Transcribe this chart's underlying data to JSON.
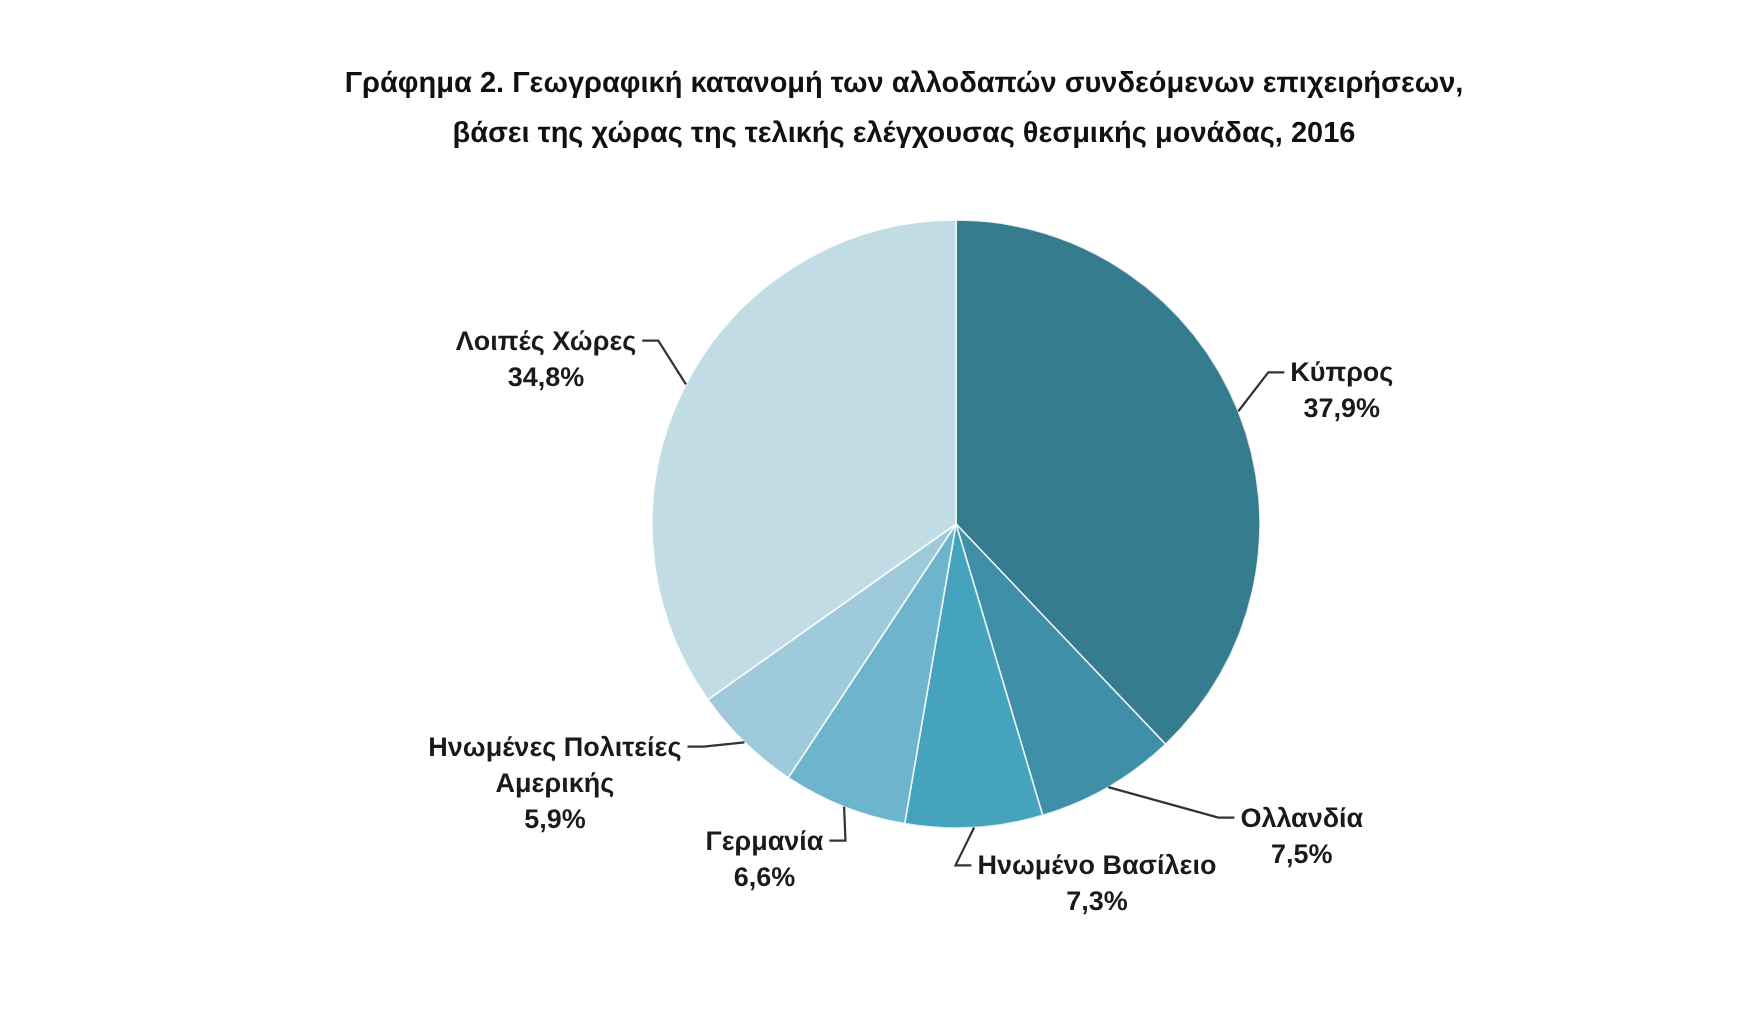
{
  "chart_data": {
    "type": "pie",
    "title": "Γράφημα 2. Γεωγραφική κατανομή των αλλοδαπών συνδεόμενων επιχειρήσεων,\nβάσει της χώρας της τελικής ελέγχουσας θεσμικής μονάδας, 2016",
    "categories": [
      "Κύπρος",
      "Ολλανδία",
      "Ηνωμένο Βασίλειο",
      "Γερμανία",
      "Ηνωμένες Πολιτείες Αμερικής",
      "Λοιπές Χώρες"
    ],
    "values": [
      37.9,
      7.5,
      7.3,
      6.6,
      5.9,
      34.8
    ],
    "value_labels": [
      "37,9%",
      "7,5%",
      "7,3%",
      "6,6%",
      "5,9%",
      "34,8%"
    ],
    "colors": [
      "#367c8f",
      "#3e8fa7",
      "#46a3bd",
      "#6db5cc",
      "#9fcadb",
      "#c2dce6"
    ]
  }
}
